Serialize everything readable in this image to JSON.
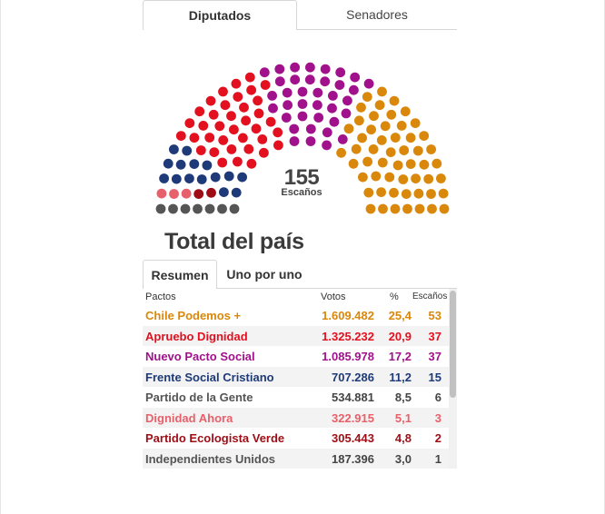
{
  "tabs": [
    {
      "label": "Diputados",
      "active": true
    },
    {
      "label": "Senadores",
      "active": false
    }
  ],
  "hemicycle": {
    "total": "155",
    "total_label": "Escaños"
  },
  "title": "Total del país",
  "subtabs": [
    {
      "label": "Resumen",
      "active": true
    },
    {
      "label": "Uno por uno",
      "active": false
    }
  ],
  "table": {
    "headers": {
      "name": "Pactos",
      "votes": "Votos",
      "pct": "%",
      "seats": "Escaños"
    },
    "rows": [
      {
        "name": "Chile Podemos +",
        "votes": "1.609.482",
        "pct": "25,4",
        "seats": "53",
        "color": "#d9880b"
      },
      {
        "name": "Apruebo Dignidad",
        "votes": "1.325.232",
        "pct": "20,9",
        "seats": "37",
        "color": "#e3101f"
      },
      {
        "name": "Nuevo Pacto Social",
        "votes": "1.085.978",
        "pct": "17,2",
        "seats": "37",
        "color": "#a0118b"
      },
      {
        "name": "Frente Social Cristiano",
        "votes": "707.286",
        "pct": "11,2",
        "seats": "15",
        "color": "#1e3a78"
      },
      {
        "name": "Partido de la Gente",
        "votes": "534.881",
        "pct": "8,5",
        "seats": "6",
        "color": "#555555"
      },
      {
        "name": "Dignidad Ahora",
        "votes": "322.915",
        "pct": "5,1",
        "seats": "3",
        "color": "#e8606a"
      },
      {
        "name": "Partido Ecologista Verde",
        "votes": "305.443",
        "pct": "4,8",
        "seats": "2",
        "color": "#9e0d15"
      },
      {
        "name": "Independientes Unidos",
        "votes": "187.396",
        "pct": "3,0",
        "seats": "1",
        "color": "#555555"
      }
    ]
  },
  "colors": {
    "seat_groups_left_to_right": [
      "#555555",
      "#e8606a",
      "#9e0d15",
      "#1e3a78",
      "#e3101f",
      "#a0118b",
      "#d9880b"
    ],
    "seat_counts_left_to_right": [
      7,
      3,
      2,
      15,
      37,
      37,
      53
    ]
  }
}
